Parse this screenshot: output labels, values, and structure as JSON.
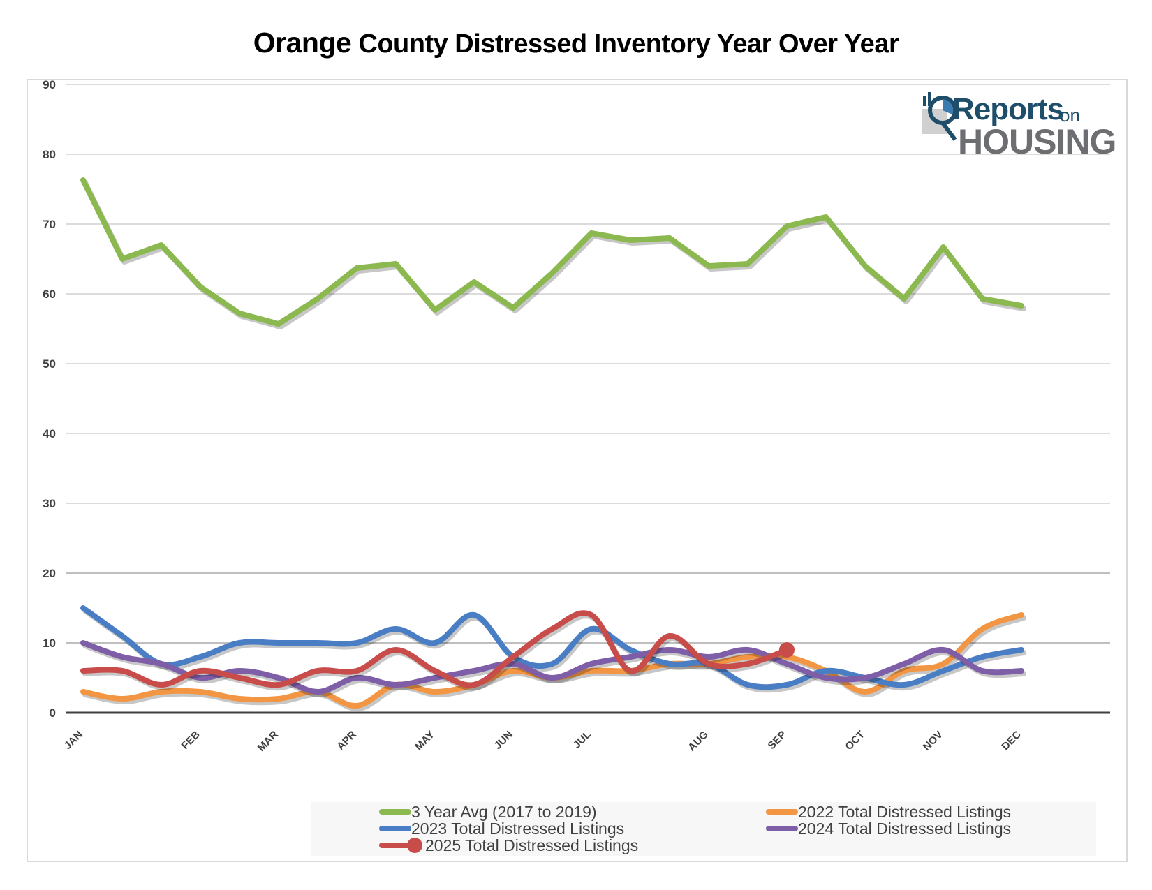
{
  "title_first_word": "Orange",
  "title_rest": " County Distressed Inventory Year Over Year",
  "logo": {
    "reports": "Reports",
    "on": "on",
    "housing": "HOUSING"
  },
  "colors": {
    "avg": "#8cb94f",
    "y2022": "#f39644",
    "y2023": "#4a7ec4",
    "y2024": "#7f5ea8",
    "y2025": "#c84c4a",
    "grid": "#c8c8c8",
    "axis": "#404040"
  },
  "chart_data": {
    "type": "line",
    "title": "Orange County Distressed Inventory Year Over Year",
    "xlabel": "",
    "ylabel": "",
    "ylim": [
      0,
      90
    ],
    "yticks": [
      0,
      10,
      20,
      30,
      40,
      50,
      60,
      70,
      80,
      90
    ],
    "grid": true,
    "legend_position": "bottom",
    "x_count": 25,
    "month_labels": [
      {
        "label": "JAN",
        "index": 0
      },
      {
        "label": "FEB",
        "index": 3
      },
      {
        "label": "MAR",
        "index": 5
      },
      {
        "label": "APR",
        "index": 7
      },
      {
        "label": "MAY",
        "index": 9
      },
      {
        "label": "JUN",
        "index": 11
      },
      {
        "label": "JUL",
        "index": 13
      },
      {
        "label": "AUG",
        "index": 16
      },
      {
        "label": "SEP",
        "index": 18
      },
      {
        "label": "OCT",
        "index": 20
      },
      {
        "label": "NOV",
        "index": 22
      },
      {
        "label": "DEC",
        "index": 24
      }
    ],
    "series": [
      {
        "name": "3 Year Avg (2017 to 2019)",
        "key": "avg",
        "smooth": false,
        "values": [
          76.3,
          65,
          67,
          61,
          57.2,
          55.7,
          59.3,
          63.7,
          64.3,
          57.7,
          61.7,
          58,
          63,
          68.7,
          67.7,
          68,
          64,
          64.3,
          69.7,
          71,
          64,
          59.3,
          66.7,
          59.3,
          58.3
        ]
      },
      {
        "name": "2022 Total Distressed Listings",
        "key": "y2022",
        "smooth": true,
        "values": [
          3,
          2,
          3,
          3,
          2,
          2,
          3,
          1,
          4,
          3,
          4,
          6,
          5,
          6,
          6,
          7,
          7,
          8,
          8,
          6,
          3,
          6,
          7,
          12,
          14
        ]
      },
      {
        "name": "2023 Total Distressed Listings",
        "key": "y2023",
        "smooth": true,
        "values": [
          15,
          11,
          7,
          8,
          10,
          10,
          10,
          10,
          12,
          10,
          14,
          8,
          7,
          12,
          9,
          7,
          7,
          4,
          4,
          6,
          5,
          4,
          6,
          8,
          9
        ]
      },
      {
        "name": "2024 Total Distressed Listings",
        "key": "y2024",
        "smooth": true,
        "values": [
          10,
          8,
          7,
          5,
          6,
          5,
          3,
          5,
          4,
          5,
          6,
          7,
          5,
          7,
          8,
          9,
          8,
          9,
          7,
          5,
          5,
          7,
          9,
          6,
          6
        ]
      },
      {
        "name": "2025 Total Distressed Listings",
        "key": "y2025",
        "smooth": true,
        "end_marker": true,
        "values": [
          6,
          6,
          4,
          6,
          5,
          4,
          6,
          6,
          9,
          6,
          4,
          8,
          12,
          14,
          6,
          11,
          7,
          7,
          9
        ]
      }
    ]
  }
}
